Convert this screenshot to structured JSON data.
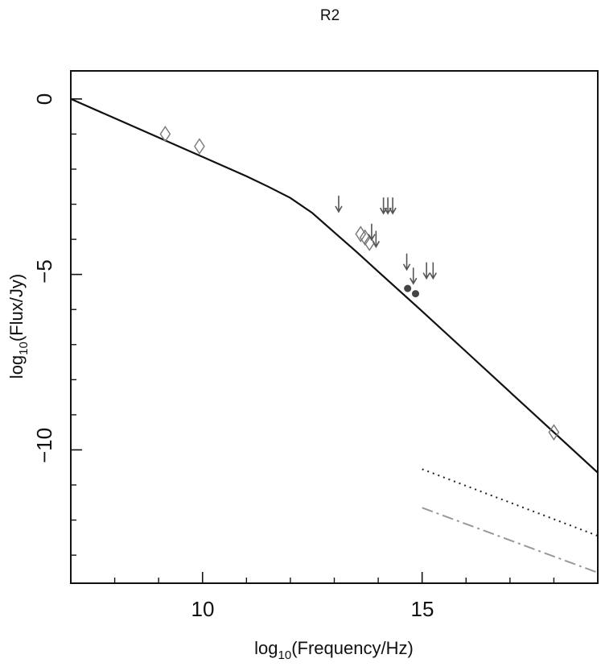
{
  "chart_data": {
    "type": "scatter",
    "title": "R2",
    "xlabel": {
      "pre": "log",
      "sub": "10",
      "post": "(Frequency/Hz)"
    },
    "ylabel": {
      "pre": "log",
      "sub": "10",
      "post": "(Flux/Jy)"
    },
    "xlim": [
      7,
      19
    ],
    "ylim": [
      -13.8,
      0.8
    ],
    "x_major_ticks": [
      10,
      15
    ],
    "x_minor_ticks": [
      8,
      9,
      11,
      12,
      13,
      14,
      16,
      17,
      18
    ],
    "y_major_ticks": [
      0,
      -5,
      -10
    ],
    "y_minor_ticks": [
      -1,
      -2,
      -3,
      -4,
      -6,
      -7,
      -8,
      -9,
      -11,
      -12,
      -13
    ],
    "x_tick_labels": [
      "10",
      "15"
    ],
    "y_tick_labels": [
      "0",
      "−5",
      "−10"
    ],
    "grid": false,
    "series": [
      {
        "style": "solid-black-line",
        "x": [
          7.0,
          8.0,
          9.0,
          10.0,
          11.0,
          11.5,
          12.0,
          12.5,
          13.0,
          13.5,
          14.0,
          15.0,
          16.0,
          17.0,
          18.0,
          19.0
        ],
        "y": [
          0.0,
          -0.55,
          -1.1,
          -1.65,
          -2.2,
          -2.5,
          -2.82,
          -3.25,
          -3.8,
          -4.35,
          -4.92,
          -6.05,
          -7.2,
          -8.35,
          -9.5,
          -10.65
        ]
      },
      {
        "style": "dotted-black-line",
        "x": [
          15.0,
          19.0
        ],
        "y": [
          -10.55,
          -12.45
        ]
      },
      {
        "style": "dashdot-gray-line",
        "x": [
          15.0,
          19.0
        ],
        "y": [
          -11.65,
          -13.5
        ]
      },
      {
        "style": "open-diamond",
        "x": [
          9.15,
          9.93,
          13.6,
          13.7,
          13.8,
          18.0
        ],
        "y": [
          -1.0,
          -1.35,
          -3.85,
          -3.95,
          -4.1,
          -9.5
        ]
      },
      {
        "style": "filled-circle",
        "x": [
          14.67,
          14.85
        ],
        "y": [
          -5.4,
          -5.55
        ]
      },
      {
        "style": "upper-limit-arrow",
        "x": [
          13.1,
          13.85,
          13.95,
          14.12,
          14.22,
          14.33,
          14.65,
          14.8,
          15.1,
          15.25
        ],
        "y": [
          -3.1,
          -3.9,
          -4.1,
          -3.15,
          -3.15,
          -3.15,
          -4.75,
          -5.15,
          -5.0,
          -5.0
        ]
      }
    ]
  }
}
